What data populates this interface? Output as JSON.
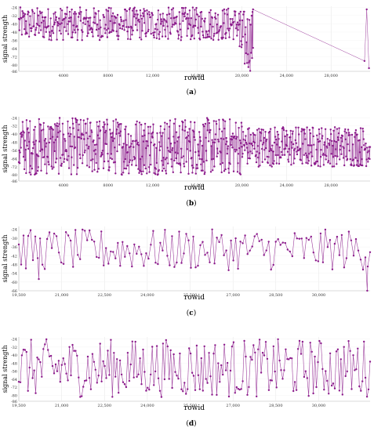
{
  "accent_color": "#8b1a8b",
  "chart_data": [
    {
      "type": "line",
      "caption_letter": "a",
      "xlabel": "rowid",
      "ylabel": "signal strength",
      "xlim": [
        0,
        31500
      ],
      "ylim": [
        -86,
        -23
      ],
      "x_ticks": [
        4000,
        8000,
        12000,
        16000,
        20000,
        24000,
        28000
      ],
      "x_tick_labels": [
        "4000",
        "8000",
        "12,000",
        "16,000",
        "20,000",
        "24,000",
        "28,000"
      ],
      "y_ticks": [
        -24,
        -32,
        -40,
        -48,
        -56,
        -64,
        -72,
        -80,
        -86
      ],
      "y_tick_labels": [
        "-24",
        "-32",
        "-40",
        "-48",
        "-56",
        "-64",
        "-72",
        "-80",
        "-86"
      ],
      "series": [
        {
          "values_summary": "dense oscillation",
          "segments": [
            {
              "x_start": 0,
              "x_end": 19800,
              "y_min": -56,
              "y_max": -24
            },
            {
              "x_start": 19800,
              "x_end": 21000,
              "y_min": -86,
              "y_max": -26
            },
            {
              "x_start": 21000,
              "x_end": 31400,
              "y_min": -77,
              "y_max": -26
            }
          ],
          "points": [
            [
              21000,
              -26
            ],
            [
              31000,
              -76
            ],
            [
              31200,
              -26
            ],
            [
              31400,
              -83
            ]
          ]
        }
      ]
    },
    {
      "type": "line",
      "caption_letter": "b",
      "xlabel": "rowid",
      "ylabel": "signal strength",
      "xlim": [
        0,
        31500
      ],
      "ylim": [
        -86,
        -23
      ],
      "x_ticks": [
        4000,
        8000,
        12000,
        16000,
        20000,
        24000,
        28000
      ],
      "x_tick_labels": [
        "4000",
        "8000",
        "12,000",
        "16,000",
        "20,000",
        "24,000",
        "28,000"
      ],
      "y_ticks": [
        -24,
        -32,
        -40,
        -48,
        -56,
        -64,
        -72,
        -80,
        -86
      ],
      "y_tick_labels": [
        "-24",
        "-32",
        "-40",
        "-48",
        "-56",
        "-64",
        "-72",
        "-80",
        "-86"
      ],
      "series": [
        {
          "segments": [
            {
              "x_start": 0,
              "x_end": 20000,
              "y_min": -80,
              "y_max": -24
            },
            {
              "x_start": 20000,
              "x_end": 31500,
              "y_min": -72,
              "y_max": -32
            }
          ]
        }
      ]
    },
    {
      "type": "line",
      "caption_letter": "c",
      "xlabel": "rowid",
      "ylabel": "signal strength",
      "xlim": [
        19500,
        31800
      ],
      "ylim": [
        -66,
        -22
      ],
      "x_ticks": [
        19500,
        21000,
        22500,
        24000,
        25500,
        27000,
        28500,
        30000
      ],
      "x_tick_labels": [
        "19,500",
        "21,000",
        "22,500",
        "24,000",
        "25,500",
        "27,000",
        "28,500",
        "30,000"
      ],
      "y_ticks": [
        -24,
        -30,
        -36,
        -42,
        -48,
        -54,
        -60,
        -66
      ],
      "y_tick_labels": [
        "-24",
        "-30",
        "-36",
        "-42",
        "-48",
        "-54",
        "-60",
        "-66"
      ],
      "series": [
        {
          "segments": [
            {
              "x_start": 19500,
              "x_end": 31800,
              "y_min": -52,
              "y_max": -24
            }
          ],
          "points": [
            [
              20200,
              -58
            ],
            [
              31700,
              -66
            ]
          ]
        }
      ]
    },
    {
      "type": "line",
      "caption_letter": "d",
      "xlabel": "rowid",
      "ylabel": "signal strength",
      "xlim": [
        19500,
        31800
      ],
      "ylim": [
        -86,
        -22
      ],
      "x_ticks": [
        19500,
        21000,
        22500,
        24000,
        25500,
        27000,
        28500,
        30000
      ],
      "x_tick_labels": [
        "19,500",
        "21,000",
        "22,500",
        "24,000",
        "25,500",
        "27,000",
        "28,500",
        "30,000"
      ],
      "y_ticks": [
        -24,
        -32,
        -40,
        -48,
        -56,
        -64,
        -72,
        -80,
        -86
      ],
      "y_tick_labels": [
        "-24",
        "-32",
        "-40",
        "-48",
        "-56",
        "-64",
        "-72",
        "-80",
        "-86"
      ],
      "series": [
        {
          "segments": [
            {
              "x_start": 19500,
              "x_end": 31800,
              "y_min": -82,
              "y_max": -24
            }
          ]
        }
      ]
    }
  ]
}
